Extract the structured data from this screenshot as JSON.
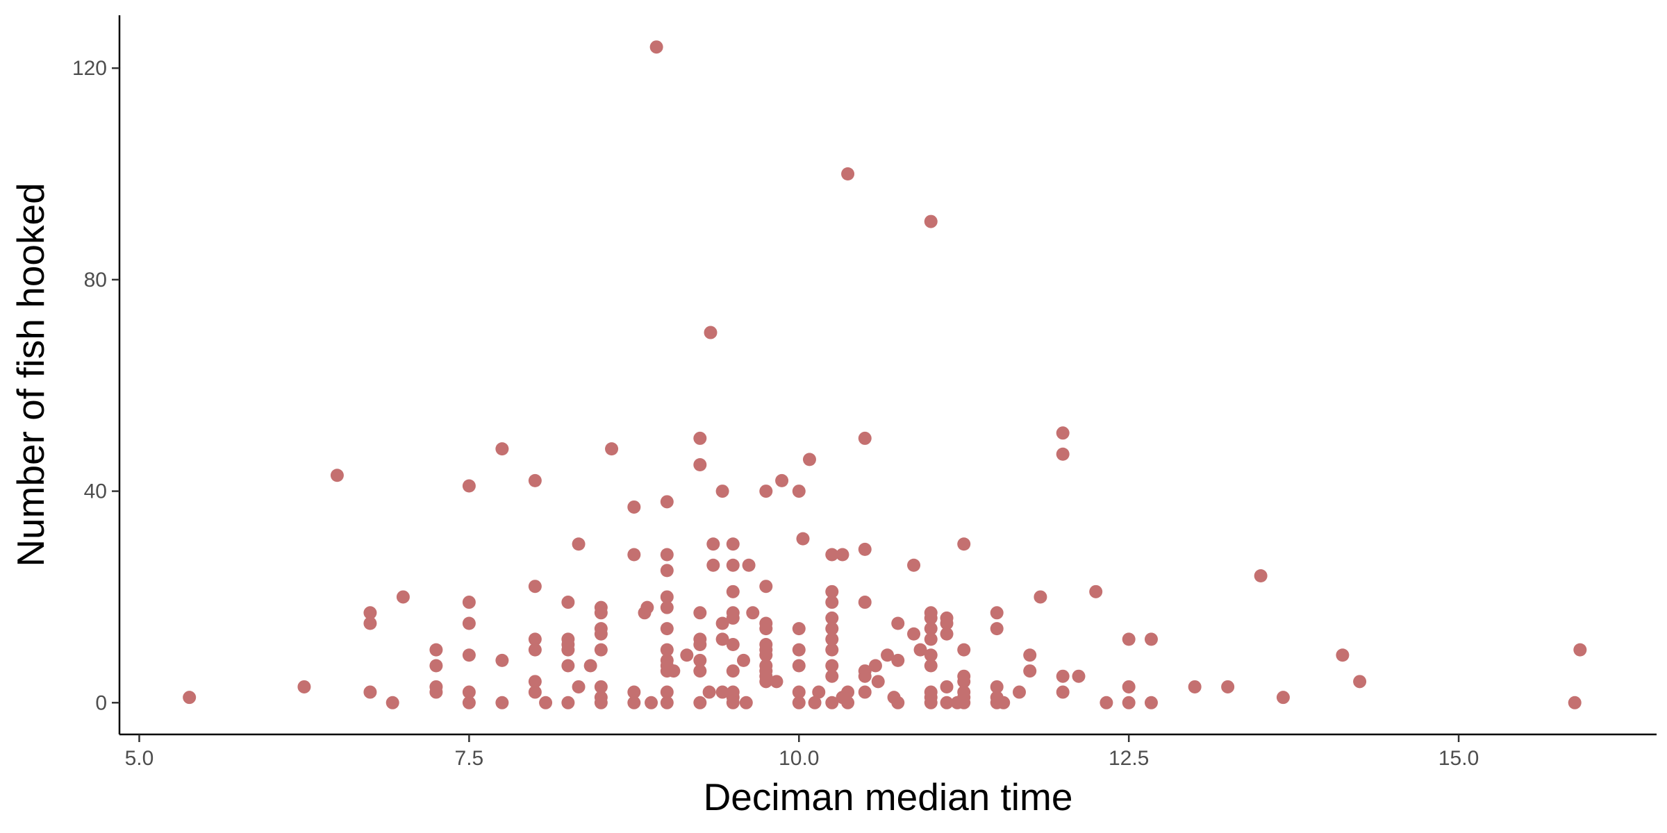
{
  "chart_data": {
    "type": "scatter",
    "xlabel": "Deciman median time",
    "ylabel": "Number of fish hooked",
    "xlim": [
      4.85,
      16.5
    ],
    "ylim": [
      -6,
      130
    ],
    "xticks": [
      5.0,
      7.5,
      10.0,
      12.5,
      15.0
    ],
    "xtick_labels": [
      "5.0",
      "7.5",
      "10.0",
      "12.5",
      "15.0"
    ],
    "yticks": [
      0,
      40,
      80,
      120
    ],
    "ytick_labels": [
      "0",
      "40",
      "80",
      "120"
    ],
    "grid": false,
    "legend": "none",
    "point_color": "#c47070",
    "points": [
      [
        5.38,
        1
      ],
      [
        6.25,
        3
      ],
      [
        6.5,
        43
      ],
      [
        6.75,
        17
      ],
      [
        6.75,
        15
      ],
      [
        6.75,
        2
      ],
      [
        6.92,
        0
      ],
      [
        7.0,
        20
      ],
      [
        7.25,
        10
      ],
      [
        7.25,
        7
      ],
      [
        7.25,
        3
      ],
      [
        7.25,
        2
      ],
      [
        7.5,
        41
      ],
      [
        7.5,
        19
      ],
      [
        7.5,
        15
      ],
      [
        7.5,
        9
      ],
      [
        7.5,
        2
      ],
      [
        7.5,
        0
      ],
      [
        7.75,
        48
      ],
      [
        7.75,
        8
      ],
      [
        7.75,
        0
      ],
      [
        8.0,
        42
      ],
      [
        8.0,
        22
      ],
      [
        8.0,
        12
      ],
      [
        8.0,
        10
      ],
      [
        8.0,
        4
      ],
      [
        8.0,
        2
      ],
      [
        8.08,
        0
      ],
      [
        8.25,
        19
      ],
      [
        8.25,
        12
      ],
      [
        8.25,
        11
      ],
      [
        8.25,
        10
      ],
      [
        8.25,
        7
      ],
      [
        8.25,
        0
      ],
      [
        8.33,
        30
      ],
      [
        8.33,
        3
      ],
      [
        8.42,
        7
      ],
      [
        8.5,
        18
      ],
      [
        8.5,
        17
      ],
      [
        8.5,
        14
      ],
      [
        8.5,
        13
      ],
      [
        8.5,
        10
      ],
      [
        8.5,
        3
      ],
      [
        8.5,
        1
      ],
      [
        8.5,
        0
      ],
      [
        8.58,
        48
      ],
      [
        8.75,
        37
      ],
      [
        8.75,
        28
      ],
      [
        8.75,
        2
      ],
      [
        8.75,
        0
      ],
      [
        8.83,
        17
      ],
      [
        8.85,
        18
      ],
      [
        8.88,
        0
      ],
      [
        8.92,
        124
      ],
      [
        9.0,
        38
      ],
      [
        9.0,
        28
      ],
      [
        9.0,
        25
      ],
      [
        9.0,
        20
      ],
      [
        9.0,
        18
      ],
      [
        9.0,
        14
      ],
      [
        9.0,
        10
      ],
      [
        9.0,
        8
      ],
      [
        9.0,
        7
      ],
      [
        9.0,
        6
      ],
      [
        9.0,
        2
      ],
      [
        9.0,
        0
      ],
      [
        9.05,
        6
      ],
      [
        9.15,
        9
      ],
      [
        9.25,
        50
      ],
      [
        9.25,
        45
      ],
      [
        9.25,
        17
      ],
      [
        9.25,
        12
      ],
      [
        9.25,
        11
      ],
      [
        9.25,
        8
      ],
      [
        9.25,
        6
      ],
      [
        9.25,
        0
      ],
      [
        9.32,
        2
      ],
      [
        9.33,
        70
      ],
      [
        9.35,
        30
      ],
      [
        9.35,
        26
      ],
      [
        9.42,
        40
      ],
      [
        9.42,
        15
      ],
      [
        9.42,
        12
      ],
      [
        9.42,
        2
      ],
      [
        9.5,
        30
      ],
      [
        9.5,
        26
      ],
      [
        9.5,
        21
      ],
      [
        9.5,
        17
      ],
      [
        9.5,
        16
      ],
      [
        9.5,
        11
      ],
      [
        9.5,
        6
      ],
      [
        9.5,
        2
      ],
      [
        9.5,
        1
      ],
      [
        9.5,
        0
      ],
      [
        9.58,
        8
      ],
      [
        9.6,
        0
      ],
      [
        9.62,
        26
      ],
      [
        9.65,
        17
      ],
      [
        9.75,
        40
      ],
      [
        9.75,
        22
      ],
      [
        9.75,
        15
      ],
      [
        9.75,
        14
      ],
      [
        9.75,
        11
      ],
      [
        9.75,
        10
      ],
      [
        9.75,
        9
      ],
      [
        9.75,
        7
      ],
      [
        9.75,
        6
      ],
      [
        9.75,
        5
      ],
      [
        9.75,
        4
      ],
      [
        9.83,
        4
      ],
      [
        9.87,
        42
      ],
      [
        10.0,
        40
      ],
      [
        10.0,
        14
      ],
      [
        10.0,
        10
      ],
      [
        10.0,
        7
      ],
      [
        10.0,
        2
      ],
      [
        10.0,
        0
      ],
      [
        10.03,
        31
      ],
      [
        10.08,
        46
      ],
      [
        10.12,
        0
      ],
      [
        10.15,
        2
      ],
      [
        10.25,
        28
      ],
      [
        10.25,
        21
      ],
      [
        10.25,
        19
      ],
      [
        10.25,
        16
      ],
      [
        10.25,
        14
      ],
      [
        10.25,
        12
      ],
      [
        10.25,
        10
      ],
      [
        10.25,
        7
      ],
      [
        10.25,
        5
      ],
      [
        10.25,
        0
      ],
      [
        10.33,
        28
      ],
      [
        10.33,
        1
      ],
      [
        10.37,
        100
      ],
      [
        10.37,
        2
      ],
      [
        10.37,
        0
      ],
      [
        10.5,
        50
      ],
      [
        10.5,
        29
      ],
      [
        10.5,
        19
      ],
      [
        10.5,
        6
      ],
      [
        10.5,
        5
      ],
      [
        10.5,
        2
      ],
      [
        10.58,
        7
      ],
      [
        10.6,
        4
      ],
      [
        10.67,
        9
      ],
      [
        10.72,
        1
      ],
      [
        10.75,
        15
      ],
      [
        10.75,
        8
      ],
      [
        10.75,
        0
      ],
      [
        10.87,
        26
      ],
      [
        10.87,
        13
      ],
      [
        10.92,
        10
      ],
      [
        11.0,
        91
      ],
      [
        11.0,
        17
      ],
      [
        11.0,
        16
      ],
      [
        11.0,
        14
      ],
      [
        11.0,
        12
      ],
      [
        11.0,
        9
      ],
      [
        11.0,
        7
      ],
      [
        11.0,
        2
      ],
      [
        11.0,
        1
      ],
      [
        11.0,
        0
      ],
      [
        11.12,
        16
      ],
      [
        11.12,
        15
      ],
      [
        11.12,
        13
      ],
      [
        11.12,
        3
      ],
      [
        11.12,
        0
      ],
      [
        11.2,
        0
      ],
      [
        11.25,
        30
      ],
      [
        11.25,
        10
      ],
      [
        11.25,
        5
      ],
      [
        11.25,
        4
      ],
      [
        11.25,
        2
      ],
      [
        11.25,
        1
      ],
      [
        11.25,
        0
      ],
      [
        11.5,
        17
      ],
      [
        11.5,
        14
      ],
      [
        11.5,
        3
      ],
      [
        11.5,
        1
      ],
      [
        11.5,
        0
      ],
      [
        11.55,
        0
      ],
      [
        11.67,
        2
      ],
      [
        11.75,
        9
      ],
      [
        11.75,
        6
      ],
      [
        11.83,
        20
      ],
      [
        12.0,
        51
      ],
      [
        12.0,
        47
      ],
      [
        12.0,
        5
      ],
      [
        12.0,
        2
      ],
      [
        12.12,
        5
      ],
      [
        12.25,
        21
      ],
      [
        12.33,
        0
      ],
      [
        12.5,
        12
      ],
      [
        12.5,
        3
      ],
      [
        12.5,
        0
      ],
      [
        12.67,
        12
      ],
      [
        12.67,
        0
      ],
      [
        13.0,
        3
      ],
      [
        13.25,
        3
      ],
      [
        13.5,
        24
      ],
      [
        13.67,
        1
      ],
      [
        14.12,
        9
      ],
      [
        14.25,
        4
      ],
      [
        15.88,
        0
      ],
      [
        15.92,
        10
      ]
    ]
  }
}
